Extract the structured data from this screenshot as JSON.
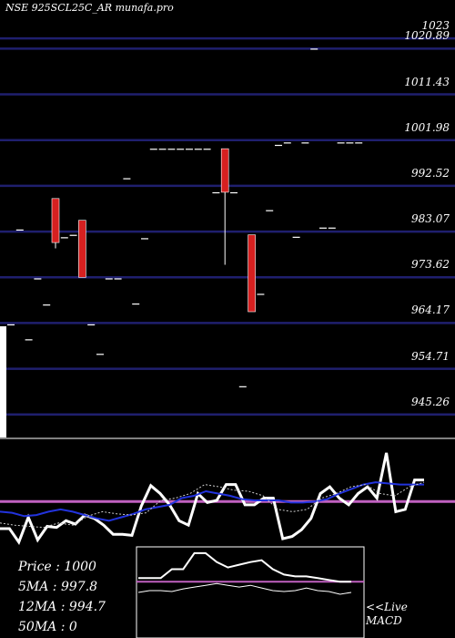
{
  "header": {
    "title": "NSE 925SCL25C_AR munafa.pro"
  },
  "colors": {
    "background": "#000000",
    "gridline": "#1f1f6e",
    "bearish": "#d62020",
    "bullish": "#ffffff",
    "ma_line": "#ffffff",
    "blue_line": "#2233dd",
    "level_line": "#c060c0",
    "panel_border": "#ffffff"
  },
  "info": {
    "price": "Price   :  1000",
    "ma5": "5MA : 997.8",
    "ma12": "12MA : 994.7",
    "ma50": "50MA : 0"
  },
  "live_label": {
    "line1": "<<Live",
    "line2": "MACD"
  },
  "chart_data": [
    {
      "type": "candlestick",
      "title": "NSE 925SCL25C_AR munafa.pro",
      "ylim": [
        940.5,
        1030
      ],
      "grid": true,
      "y_ticks": [
        1023,
        1020.89,
        1011.43,
        1001.98,
        992.52,
        983.07,
        973.62,
        964.17,
        954.71,
        945.26
      ],
      "y_tick_labels": [
        "1023",
        "1020.89",
        "1011.43",
        "1001.98",
        "992.52",
        "983.07",
        "973.62",
        "964.17",
        "954.71",
        "945.26"
      ],
      "candles": [
        {
          "open": 963.9,
          "high": 963.9,
          "low": 963.9,
          "close": 963.9
        },
        {
          "open": 983.5,
          "high": 983.5,
          "low": 983.5,
          "close": 983.5
        },
        {
          "open": 960.8,
          "high": 960.8,
          "low": 960.8,
          "close": 960.8
        },
        {
          "open": 973.4,
          "high": 973.4,
          "low": 973.4,
          "close": 973.4
        },
        {
          "open": 968.0,
          "high": 968.0,
          "low": 968.0,
          "close": 968.0
        },
        {
          "open": 989.9,
          "high": 989.9,
          "low": 979.6,
          "close": 980.8
        },
        {
          "open": 981.9,
          "high": 981.9,
          "low": 981.9,
          "close": 981.9
        },
        {
          "open": 982.4,
          "high": 982.4,
          "low": 982.4,
          "close": 982.4
        },
        {
          "open": 985.4,
          "high": 985.4,
          "low": 973.6,
          "close": 973.6
        },
        {
          "open": 963.9,
          "high": 963.9,
          "low": 963.9,
          "close": 963.9
        },
        {
          "open": 957.8,
          "high": 957.8,
          "low": 957.8,
          "close": 957.8
        },
        {
          "open": 973.4,
          "high": 973.4,
          "low": 973.4,
          "close": 973.4
        },
        {
          "open": 973.4,
          "high": 973.4,
          "low": 973.4,
          "close": 973.4
        },
        {
          "open": 994.1,
          "high": 994.1,
          "low": 994.1,
          "close": 994.1
        },
        {
          "open": 968.2,
          "high": 968.2,
          "low": 968.2,
          "close": 968.2
        },
        {
          "open": 981.7,
          "high": 981.7,
          "low": 981.7,
          "close": 981.7
        },
        {
          "open": 1000.2,
          "high": 1000.2,
          "low": 1000.2,
          "close": 1000.2
        },
        {
          "open": 1000.2,
          "high": 1000.2,
          "low": 1000.2,
          "close": 1000.2
        },
        {
          "open": 1000.2,
          "high": 1000.2,
          "low": 1000.2,
          "close": 1000.2
        },
        {
          "open": 1000.2,
          "high": 1000.2,
          "low": 1000.2,
          "close": 1000.2
        },
        {
          "open": 1000.2,
          "high": 1000.2,
          "low": 1000.2,
          "close": 1000.2
        },
        {
          "open": 1000.2,
          "high": 1000.2,
          "low": 1000.2,
          "close": 1000.2
        },
        {
          "open": 1000.2,
          "high": 1000.2,
          "low": 1000.2,
          "close": 1000.2
        },
        {
          "open": 991.2,
          "high": 991.2,
          "low": 991.2,
          "close": 991.2
        },
        {
          "open": 1000.2,
          "high": 1000.2,
          "low": 976.2,
          "close": 991.2
        },
        {
          "open": 991.2,
          "high": 991.2,
          "low": 991.2,
          "close": 991.2
        },
        {
          "open": 951.1,
          "high": 951.1,
          "low": 951.1,
          "close": 951.1
        },
        {
          "open": 982.4,
          "high": 982.4,
          "low": 966.5,
          "close": 966.5
        },
        {
          "open": 970.2,
          "high": 970.2,
          "low": 970.2,
          "close": 970.2
        },
        {
          "open": 987.5,
          "high": 987.5,
          "low": 987.5,
          "close": 987.5
        },
        {
          "open": 1001.0,
          "high": 1001.0,
          "low": 1001.0,
          "close": 1001.0
        },
        {
          "open": 1001.5,
          "high": 1001.5,
          "low": 1001.5,
          "close": 1001.5
        },
        {
          "open": 982.0,
          "high": 982.0,
          "low": 982.0,
          "close": 982.0
        },
        {
          "open": 1001.5,
          "high": 1001.5,
          "low": 1001.5,
          "close": 1001.5
        },
        {
          "open": 1020.9,
          "high": 1020.9,
          "low": 1020.9,
          "close": 1020.9
        },
        {
          "open": 983.9,
          "high": 983.9,
          "low": 983.9,
          "close": 983.9
        },
        {
          "open": 983.9,
          "high": 983.9,
          "low": 983.9,
          "close": 983.9
        },
        {
          "open": 1001.5,
          "high": 1001.5,
          "low": 1001.5,
          "close": 1001.5
        },
        {
          "open": 1001.5,
          "high": 1001.5,
          "low": 1001.5,
          "close": 1001.5
        },
        {
          "open": 1001.5,
          "high": 1001.5,
          "low": 1001.5,
          "close": 1001.5
        }
      ]
    },
    {
      "type": "line",
      "ylim": [
        0,
        100
      ],
      "series": [
        {
          "values": [
            28,
            28,
            28,
            38,
            38,
            56,
            56,
            46,
            40,
            43,
            46,
            48,
            38,
            32,
            30,
            30,
            28,
            26,
            24,
            24
          ]
        },
        {
          "values": [
            12,
            14,
            14,
            13,
            16,
            18,
            20,
            22,
            20,
            18,
            20,
            17,
            14,
            13,
            14,
            17,
            14,
            13,
            10,
            12
          ]
        }
      ],
      "level": 62
    },
    {
      "type": "line",
      "ylim": [
        0,
        100
      ],
      "series": [
        {
          "values": [
            21,
            21,
            9,
            31,
            11,
            23,
            22,
            28,
            25,
            33,
            30,
            24,
            16,
            16,
            15,
            41,
            59,
            52,
            42,
            28,
            24,
            52,
            44,
            46,
            60,
            60,
            42,
            42,
            48,
            48,
            12,
            14,
            20,
            30,
            52,
            58,
            48,
            42,
            52,
            58,
            48,
            88,
            36,
            38,
            64,
            64
          ]
        },
        {
          "values": [
            36,
            35,
            32,
            33,
            36,
            38,
            36,
            33,
            30,
            28,
            31,
            34,
            38,
            40,
            42,
            48,
            50,
            54,
            52,
            50,
            47,
            46,
            46,
            46,
            44,
            44,
            45,
            47,
            52,
            56,
            60,
            62,
            61,
            60,
            60,
            60
          ]
        },
        {
          "values": [
            26,
            24,
            23,
            22,
            26,
            24,
            32,
            36,
            34,
            33,
            35,
            46,
            48,
            52,
            60,
            58,
            55,
            54,
            50,
            38,
            36,
            38,
            48,
            52,
            58,
            60,
            52,
            50,
            58,
            62
          ]
        }
      ],
      "level": 45
    }
  ]
}
